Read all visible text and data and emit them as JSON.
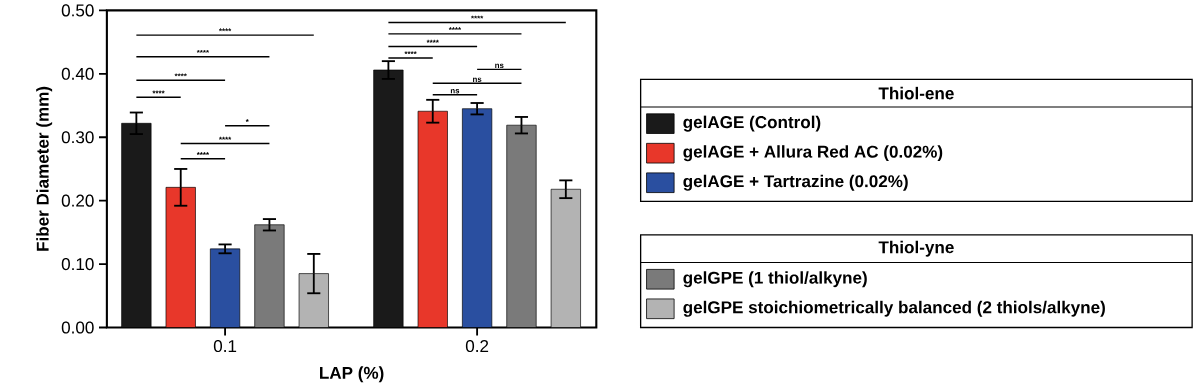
{
  "chart_data": {
    "type": "bar",
    "xlabel": "LAP (%)",
    "ylabel": "Fiber Diameter (mm)",
    "categories": [
      "0.1",
      "0.2"
    ],
    "series": [
      {
        "name": "gelAGE (Control)",
        "color": "#1a1a1a",
        "values": [
          0.322,
          0.406
        ],
        "errors": [
          0.017,
          0.014
        ]
      },
      {
        "name": "gelAGE + Allura Red AC (0.02%)",
        "color": "#e8372a",
        "values": [
          0.221,
          0.341
        ],
        "errors": [
          0.029,
          0.018
        ]
      },
      {
        "name": "gelAGE + Tartrazine (0.02%)",
        "color": "#2a4fa0",
        "values": [
          0.124,
          0.345
        ],
        "errors": [
          0.007,
          0.009
        ]
      },
      {
        "name": "gelGPE (1 thiol/alkyne)",
        "color": "#7a7a7a",
        "values": [
          0.162,
          0.319
        ],
        "errors": [
          0.009,
          0.013
        ]
      },
      {
        "name": "gelGPE stoichiometrically balanced (2 thiols/alkyne)",
        "color": "#b3b3b3",
        "values": [
          0.085,
          0.218
        ],
        "errors": [
          0.031,
          0.014
        ]
      }
    ],
    "ylim": [
      0,
      0.5
    ],
    "yticks": [
      {
        "value": 0,
        "label": "0.00"
      },
      {
        "value": 0.1,
        "label": "0.10"
      },
      {
        "value": 0.2,
        "label": "0.20"
      },
      {
        "value": 0.3,
        "label": "0.30"
      },
      {
        "value": 0.4,
        "label": "0.40"
      },
      {
        "value": 0.5,
        "label": "0.50"
      }
    ],
    "legend": "right",
    "annotations": [
      "****",
      "****",
      "****",
      "****",
      "*",
      "****",
      "****",
      "****",
      "****",
      "****",
      "****",
      "ns",
      "ns",
      "ns",
      "Thiol-ene",
      "Thiol-yne"
    ]
  }
}
